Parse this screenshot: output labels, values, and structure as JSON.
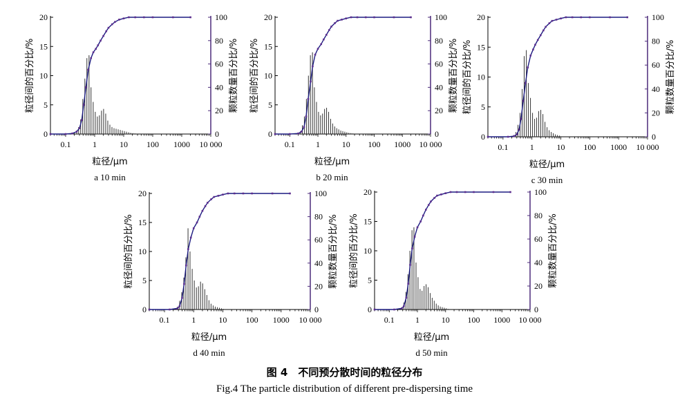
{
  "figure": {
    "caption_cn": "图 4　不同预分散时间的粒径分布",
    "caption_en": "Fig.4 The particle distribution of different pre-dispersing time"
  },
  "colors": {
    "bars": "#333333",
    "curve": "#1a1a80",
    "markers": "#5b2d8e",
    "right_axis": "#4b2a7a"
  },
  "chart_data": [
    {
      "type": "bar",
      "caption": "a  10 min",
      "xlabel": "粒径/μm",
      "ylabel_left": "粒径间的百分比/%",
      "ylabel_right": "颗粒数量百分比/%",
      "xscale": "log",
      "xlim": [
        0.03,
        10000
      ],
      "xticks": [
        "0.1",
        "1",
        "10",
        "100",
        "1000",
        "10 000"
      ],
      "ylim_left": [
        0,
        20
      ],
      "yticks_left": [
        "0",
        "5",
        "10",
        "15",
        "20"
      ],
      "ylim_right": [
        0,
        100
      ],
      "yticks_right": [
        "0",
        "20",
        "40",
        "60",
        "80",
        "100"
      ],
      "bars": {
        "x": [
          0.17,
          0.2,
          0.24,
          0.28,
          0.33,
          0.39,
          0.46,
          0.54,
          0.64,
          0.75,
          0.89,
          1.05,
          1.24,
          1.46,
          1.72,
          2.03,
          2.4,
          2.83,
          3.34,
          3.94,
          4.65,
          5.48,
          6.47,
          7.63,
          9,
          10.6,
          12.5,
          14.8,
          17.4,
          20.6,
          24.3
        ],
        "values": [
          0.1,
          0.3,
          0.6,
          1.2,
          2.5,
          6,
          9.5,
          13,
          13.5,
          8,
          5.5,
          3.8,
          3,
          3.2,
          4,
          4.3,
          3.5,
          2.3,
          1.6,
          1.2,
          1,
          0.9,
          0.8,
          0.7,
          0.6,
          0.5,
          0.4,
          0.3,
          0.2,
          0.15,
          0.1
        ]
      },
      "series": [
        {
          "name": "",
          "x": [
            0.03,
            0.1,
            0.17,
            0.24,
            0.3,
            0.36,
            0.42,
            0.5,
            0.6,
            0.75,
            0.9,
            1.1,
            1.3,
            1.6,
            2,
            2.5,
            3,
            4,
            5,
            7,
            10,
            15,
            25,
            50,
            100,
            500,
            2000
          ],
          "values": [
            0,
            0,
            0.5,
            2,
            5,
            12,
            25,
            40,
            55,
            65,
            70,
            73,
            76,
            80,
            84,
            88,
            91,
            94,
            96,
            98,
            99,
            100,
            100,
            100,
            100,
            100,
            100
          ]
        }
      ]
    },
    {
      "type": "bar",
      "caption": "b  20 min",
      "xlabel": "粒径/μm",
      "ylabel_left": "粒径间的百分比/%",
      "ylabel_right": "颗粒数量百分比/%",
      "xscale": "log",
      "xlim": [
        0.03,
        10000
      ],
      "xticks": [
        "0.1",
        "1",
        "10",
        "100",
        "1000",
        "10 000"
      ],
      "ylim_left": [
        0,
        20
      ],
      "yticks_left": [
        "0",
        "5",
        "10",
        "15",
        "20"
      ],
      "ylim_right": [
        0,
        100
      ],
      "yticks_right": [
        "0",
        "20",
        "40",
        "60",
        "80",
        "100"
      ],
      "bars": {
        "x": [
          0.2,
          0.24,
          0.28,
          0.33,
          0.39,
          0.46,
          0.54,
          0.64,
          0.75,
          0.89,
          1.05,
          1.24,
          1.46,
          1.72,
          2.03,
          2.4,
          2.83,
          3.34,
          3.94,
          4.65,
          5.48,
          6.47,
          7.63,
          9,
          10.6,
          12.5,
          14.8,
          17.4
        ],
        "values": [
          0.2,
          0.5,
          1.5,
          3,
          6,
          10,
          13.5,
          14,
          8,
          5.5,
          3.8,
          3.2,
          3.5,
          4.3,
          4.5,
          3.8,
          2.6,
          1.8,
          1.3,
          1,
          0.8,
          0.6,
          0.5,
          0.4,
          0.3,
          0.2,
          0.15,
          0.1
        ]
      },
      "series": [
        {
          "name": "",
          "x": [
            0.03,
            0.1,
            0.2,
            0.26,
            0.32,
            0.38,
            0.45,
            0.55,
            0.65,
            0.8,
            1,
            1.3,
            1.6,
            2,
            2.5,
            3,
            4,
            5,
            7,
            10,
            15,
            25,
            50,
            100,
            500,
            2000
          ],
          "values": [
            0,
            0,
            0.5,
            2,
            6,
            15,
            30,
            45,
            58,
            68,
            73,
            77,
            81,
            85,
            89,
            92,
            95,
            97,
            98,
            99,
            100,
            100,
            100,
            100,
            100,
            100
          ]
        }
      ]
    },
    {
      "type": "bar",
      "caption": "c  30 min",
      "xlabel": "粒径/μm",
      "ylabel_left": "粒径间的百分比/%",
      "ylabel_right": "颗粒数量百分比/%",
      "xscale": "log",
      "xlim": [
        0.03,
        10000
      ],
      "xticks": [
        "0.1",
        "1",
        "10",
        "100",
        "1000",
        "10 000"
      ],
      "ylim_left": [
        0,
        20
      ],
      "yticks_left": [
        "0",
        "5",
        "10",
        "15",
        "20"
      ],
      "ylim_right": [
        0,
        100
      ],
      "yticks_right": [
        "0",
        "20",
        "40",
        "60",
        "80",
        "100"
      ],
      "bars": {
        "x": [
          0.24,
          0.28,
          0.33,
          0.39,
          0.46,
          0.54,
          0.64,
          0.75,
          0.89,
          1.05,
          1.24,
          1.46,
          1.72,
          2.03,
          2.4,
          2.83,
          3.34,
          3.94,
          4.65,
          5.48,
          6.47,
          7.63,
          9
        ],
        "values": [
          0.3,
          0.8,
          2,
          4,
          8,
          13.5,
          14.5,
          9,
          6.5,
          4,
          3,
          3.2,
          4.3,
          4.5,
          3.8,
          2.5,
          1.6,
          1.1,
          0.8,
          0.6,
          0.4,
          0.3,
          0.2
        ]
      },
      "series": [
        {
          "name": "",
          "x": [
            0.03,
            0.15,
            0.24,
            0.3,
            0.36,
            0.42,
            0.5,
            0.6,
            0.72,
            0.9,
            1.1,
            1.3,
            1.6,
            2,
            2.5,
            3,
            4,
            5,
            7,
            10,
            15,
            25,
            50,
            100,
            500,
            2000
          ],
          "values": [
            0,
            0,
            0.5,
            2,
            6,
            15,
            30,
            45,
            58,
            68,
            73,
            77,
            81,
            85,
            89,
            92,
            95,
            97,
            98,
            99,
            100,
            100,
            100,
            100,
            100,
            100
          ]
        }
      ]
    },
    {
      "type": "bar",
      "caption": "d  40 min",
      "xlabel": "粒径/μm",
      "ylabel_left": "粒径间的百分比/%",
      "ylabel_right": "颗粒数量百分比/%",
      "xscale": "log",
      "xlim": [
        0.03,
        10000
      ],
      "xticks": [
        "0.1",
        "1",
        "10",
        "100",
        "1000",
        "10 000"
      ],
      "ylim_left": [
        0,
        20
      ],
      "yticks_left": [
        "0",
        "5",
        "10",
        "15",
        "20"
      ],
      "ylim_right": [
        0,
        100
      ],
      "yticks_right": [
        "0",
        "20",
        "40",
        "60",
        "80",
        "100"
      ],
      "bars": {
        "x": [
          0.28,
          0.33,
          0.39,
          0.46,
          0.54,
          0.64,
          0.75,
          0.89,
          1.05,
          1.24,
          1.46,
          1.72,
          2.03,
          2.4,
          2.83,
          3.34,
          3.94,
          4.65,
          5.48,
          6.47,
          7.63,
          9,
          10.6
        ],
        "values": [
          0.5,
          1.5,
          3,
          5.5,
          9,
          14,
          10,
          7,
          5,
          3.8,
          4,
          4.8,
          4.5,
          3.5,
          2.5,
          1.6,
          1,
          0.7,
          0.5,
          0.4,
          0.3,
          0.2,
          0.1
        ]
      },
      "series": [
        {
          "name": "",
          "x": [
            0.03,
            0.15,
            0.28,
            0.33,
            0.4,
            0.47,
            0.55,
            0.65,
            0.8,
            1,
            1.3,
            1.6,
            2,
            2.5,
            3,
            4,
            5,
            7,
            10,
            15,
            25,
            50,
            100,
            500,
            2000
          ],
          "values": [
            0,
            0,
            1,
            3,
            10,
            22,
            38,
            52,
            62,
            70,
            75,
            80,
            85,
            89,
            92,
            95,
            97,
            98,
            99,
            100,
            100,
            100,
            100,
            100,
            100
          ]
        }
      ]
    },
    {
      "type": "bar",
      "caption": "d  50 min",
      "xlabel": "粒径/μm",
      "ylabel_left": "粒径间的百分比/%",
      "ylabel_right": "颗粒数量百分比/%",
      "xscale": "log",
      "xlim": [
        0.03,
        10000
      ],
      "xticks": [
        "0.1",
        "1",
        "10",
        "100",
        "1000",
        "10 000"
      ],
      "ylim_left": [
        0,
        20
      ],
      "yticks_left": [
        "0",
        "5",
        "10",
        "15",
        "20"
      ],
      "ylim_right": [
        0,
        100
      ],
      "yticks_right": [
        "0",
        "20",
        "40",
        "60",
        "80",
        "100"
      ],
      "bars": {
        "x": [
          0.28,
          0.33,
          0.39,
          0.46,
          0.54,
          0.64,
          0.75,
          0.89,
          1.05,
          1.24,
          1.46,
          1.72,
          2.03,
          2.4,
          2.83,
          3.34,
          3.94,
          4.65,
          5.48,
          6.47,
          7.63,
          9,
          10.6,
          12.5
        ],
        "values": [
          0.4,
          1.2,
          3,
          6,
          10,
          13.5,
          14,
          8,
          5.5,
          3.5,
          3.2,
          4,
          4.3,
          3.8,
          2.8,
          2,
          1.5,
          1,
          0.7,
          0.5,
          0.4,
          0.3,
          0.2,
          0.1
        ]
      },
      "series": [
        {
          "name": "",
          "x": [
            0.03,
            0.15,
            0.28,
            0.33,
            0.4,
            0.47,
            0.55,
            0.65,
            0.8,
            1,
            1.3,
            1.6,
            2,
            2.5,
            3,
            4,
            5,
            7,
            10,
            15,
            25,
            50,
            100,
            500,
            2000
          ],
          "values": [
            0,
            0,
            1,
            3,
            10,
            22,
            38,
            52,
            62,
            70,
            75,
            80,
            85,
            89,
            92,
            95,
            97,
            98,
            99,
            100,
            100,
            100,
            100,
            100,
            100
          ]
        }
      ]
    }
  ]
}
